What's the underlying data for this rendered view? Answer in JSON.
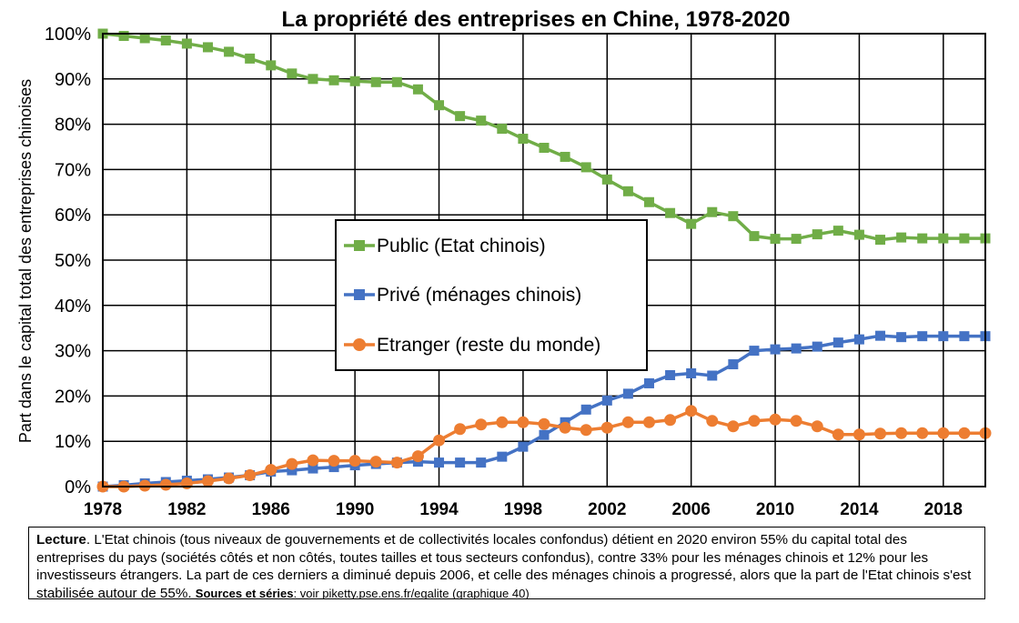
{
  "chart_data": {
    "type": "line",
    "title": "La propriété des entreprises en Chine, 1978-2020",
    "ylabel": "Part dans le capital total des entreprises chinoises",
    "xlabel": "",
    "xlim": [
      1978,
      2020
    ],
    "ylim": [
      0,
      1
    ],
    "grid": true,
    "legend_position": "center",
    "x_ticks": [
      1978,
      1982,
      1986,
      1990,
      1994,
      1998,
      2002,
      2006,
      2010,
      2014,
      2018
    ],
    "y_ticks": [
      0,
      0.1,
      0.2,
      0.3,
      0.4,
      0.5,
      0.6,
      0.7,
      0.8,
      0.9,
      1.0
    ],
    "x_tick_labels": [
      "1978",
      "1982",
      "1986",
      "1990",
      "1994",
      "1998",
      "2002",
      "2006",
      "2010",
      "2014",
      "2018"
    ],
    "y_tick_labels": [
      "0%",
      "10%",
      "20%",
      "30%",
      "40%",
      "50%",
      "60%",
      "70%",
      "80%",
      "90%",
      "100%"
    ],
    "x": [
      1978,
      1979,
      1980,
      1981,
      1982,
      1983,
      1984,
      1985,
      1986,
      1987,
      1988,
      1989,
      1990,
      1991,
      1992,
      1993,
      1994,
      1995,
      1996,
      1997,
      1998,
      1999,
      2000,
      2001,
      2002,
      2003,
      2004,
      2005,
      2006,
      2007,
      2008,
      2009,
      2010,
      2011,
      2012,
      2013,
      2014,
      2015,
      2016,
      2017,
      2018,
      2019,
      2020
    ],
    "series": [
      {
        "name": "Public (Etat chinois)",
        "color": "#70ad47",
        "marker": "square",
        "values": [
          1.0,
          0.995,
          0.99,
          0.985,
          0.978,
          0.97,
          0.96,
          0.945,
          0.93,
          0.912,
          0.9,
          0.897,
          0.895,
          0.893,
          0.893,
          0.877,
          0.842,
          0.818,
          0.808,
          0.79,
          0.768,
          0.748,
          0.728,
          0.705,
          0.678,
          0.652,
          0.628,
          0.604,
          0.58,
          0.606,
          0.597,
          0.553,
          0.547,
          0.547,
          0.557,
          0.565,
          0.556,
          0.545,
          0.55,
          0.548,
          0.548,
          0.548,
          0.548
        ]
      },
      {
        "name": "Privé (ménages chinois)",
        "color": "#4472c4",
        "marker": "square",
        "values": [
          0.0,
          0.003,
          0.007,
          0.01,
          0.013,
          0.016,
          0.02,
          0.025,
          0.033,
          0.036,
          0.04,
          0.043,
          0.047,
          0.05,
          0.053,
          0.055,
          0.053,
          0.053,
          0.053,
          0.066,
          0.088,
          0.114,
          0.142,
          0.17,
          0.19,
          0.205,
          0.228,
          0.246,
          0.25,
          0.245,
          0.27,
          0.3,
          0.303,
          0.305,
          0.309,
          0.318,
          0.325,
          0.333,
          0.33,
          0.332,
          0.332,
          0.332,
          0.332
        ]
      },
      {
        "name": "Etranger (reste du monde)",
        "color": "#ed7d31",
        "marker": "circle",
        "values": [
          0.0,
          0.0,
          0.002,
          0.004,
          0.007,
          0.012,
          0.018,
          0.025,
          0.037,
          0.05,
          0.058,
          0.057,
          0.057,
          0.055,
          0.053,
          0.067,
          0.102,
          0.127,
          0.137,
          0.142,
          0.142,
          0.138,
          0.13,
          0.125,
          0.13,
          0.142,
          0.142,
          0.147,
          0.167,
          0.145,
          0.133,
          0.145,
          0.148,
          0.145,
          0.133,
          0.115,
          0.115,
          0.117,
          0.118,
          0.118,
          0.118,
          0.118,
          0.118
        ]
      }
    ]
  },
  "caption": {
    "lead_label": "Lecture",
    "text": ". L'Etat chinois (tous niveaux de gouvernements et de collectivités locales confondus) détient en 2020 environ 55% du capital total des entreprises du pays (sociétés côtés et non côtés, toutes tailles et tous secteurs confondus), contre 33% pour les ménages chinois et 12% pour les investisseurs étrangers. La part de ces derniers a diminué depuis 2006, et celle des ménages chinois a progressé, alors que la part de l'Etat chinois s'est stabilisée autour de 55%.",
    "sources_label": "Sources et séries",
    "sources_text": ": voir piketty.pse.ens.fr/egalite (graphique 40)"
  }
}
